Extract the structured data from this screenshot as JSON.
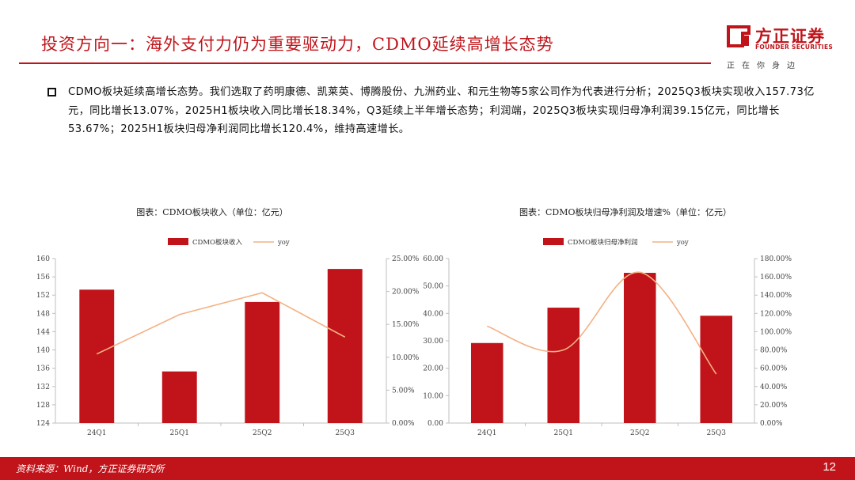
{
  "header": {
    "title": "投资方向一：海外支付力仍为重要驱动力，CDMO延续高增长态势",
    "logo_name": "方正证券",
    "logo_en": "FOUNDER SECURITIES",
    "logo_slogan": "正在你身边"
  },
  "body": {
    "paragraph": "CDMO板块延续高增长态势。我们选取了药明康德、凯莱英、博腾股份、九洲药业、和元生物等5家公司作为代表进行分析；2025Q3板块实现收入157.73亿元，同比增长13.07%，2025H1板块收入同比增长18.34%，Q3延续上半年增长态势；利润端，2025Q3板块实现归母净利润39.15亿元，同比增长53.67%；2025H1板块归母净利润同比增长120.4%，维持高速增长。"
  },
  "chart_data": [
    {
      "type": "bar",
      "title": "图表：CDMO板块收入（单位：亿元）",
      "categories": [
        "24Q1",
        "25Q1",
        "25Q2",
        "25Q3"
      ],
      "series": [
        {
          "name": "CDMO板块收入",
          "kind": "bar",
          "axis": "left",
          "color": "#c0141a",
          "values": [
            153.2,
            135.3,
            150.5,
            157.73
          ]
        },
        {
          "name": "yoy",
          "kind": "line",
          "axis": "right",
          "color": "#f4b183",
          "values": [
            10.5,
            16.5,
            19.8,
            13.07
          ]
        }
      ],
      "y_left": {
        "min": 124,
        "max": 160,
        "step": 4,
        "ticks": [
          "124",
          "128",
          "132",
          "136",
          "140",
          "144",
          "148",
          "152",
          "156",
          "160"
        ]
      },
      "y_right": {
        "min": 0,
        "max": 25,
        "step": 5,
        "ticks": [
          "0.00%",
          "5.00%",
          "10.00%",
          "15.00%",
          "20.00%",
          "25.00%"
        ]
      },
      "legend": "top-center",
      "grid": false
    },
    {
      "type": "bar",
      "title": "图表：CDMO板块归母净利润及增速%（单位：亿元）",
      "categories": [
        "24Q1",
        "25Q1",
        "25Q2",
        "25Q3"
      ],
      "series": [
        {
          "name": "CDMO板块归母净利润",
          "kind": "bar",
          "axis": "left",
          "color": "#c0141a",
          "values": [
            29.2,
            42.1,
            54.8,
            39.15
          ]
        },
        {
          "name": "yoy",
          "kind": "line",
          "axis": "right",
          "color": "#f4b183",
          "values": [
            106,
            80,
            165,
            53.67
          ]
        }
      ],
      "y_left": {
        "min": 0,
        "max": 60,
        "step": 10,
        "ticks": [
          "0.00",
          "10.00",
          "20.00",
          "30.00",
          "40.00",
          "50.00",
          "60.00"
        ]
      },
      "y_right": {
        "min": 0,
        "max": 180,
        "step": 20,
        "ticks": [
          "0.00%",
          "20.00%",
          "40.00%",
          "60.00%",
          "80.00%",
          "100.00%",
          "120.00%",
          "140.00%",
          "160.00%",
          "180.00%"
        ]
      },
      "legend": "top-center",
      "grid": false
    }
  ],
  "footer": {
    "source": "资料来源：Wind，方正证券研究所",
    "page": "12"
  },
  "colors": {
    "accent": "#c0141a",
    "line": "#f4b183"
  }
}
